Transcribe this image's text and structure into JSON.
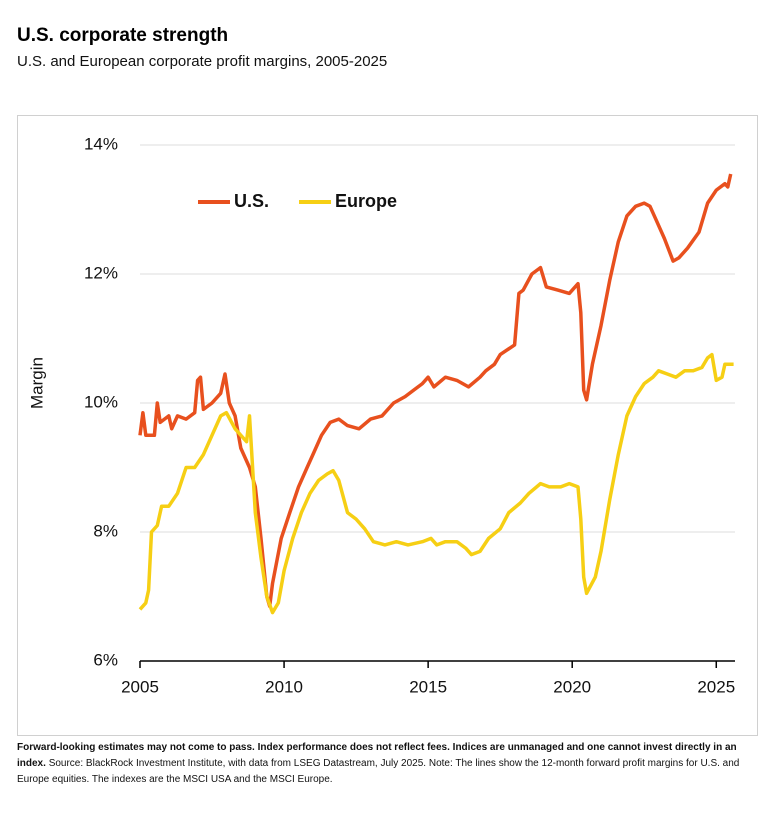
{
  "chart_data": {
    "type": "line",
    "title": "U.S. corporate strength",
    "subtitle": "U.S. and European corporate profit margins, 2005-2025",
    "ylabel": "Margin",
    "note_bold": "Forward-looking estimates may not come to pass. Index performance does not reflect fees. Indices are unmanaged and one cannot invest directly in an index.",
    "note": "Source: BlackRock Investment Institute, with data from LSEG Datastream, July 2025. Note: The lines show the 12-month forward profit margins for U.S. and Europe equities. The indexes are the MSCI USA and the MSCI Europe.",
    "xlim": [
      2005,
      2025.65
    ],
    "xticks": [
      2005,
      2010,
      2015,
      2020,
      2025
    ],
    "ylim": [
      6,
      14
    ],
    "yticks": [
      {
        "value": 6,
        "label": "6%"
      },
      {
        "value": 8,
        "label": "8%"
      },
      {
        "value": 10,
        "label": "10%"
      },
      {
        "value": 12,
        "label": "12%"
      },
      {
        "value": 14,
        "label": "14%"
      }
    ],
    "grid": true,
    "legend": "top-left",
    "series": [
      {
        "name": "U.S.",
        "color": "#e8501e",
        "x": [
          2005.0,
          2005.1,
          2005.2,
          2005.5,
          2005.6,
          2005.7,
          2006.0,
          2006.1,
          2006.3,
          2006.6,
          2006.9,
          2007.0,
          2007.1,
          2007.2,
          2007.5,
          2007.8,
          2007.95,
          2008.1,
          2008.3,
          2008.5,
          2008.8,
          2009.0,
          2009.2,
          2009.4,
          2009.5,
          2009.6,
          2009.9,
          2010.2,
          2010.5,
          2010.8,
          2011.0,
          2011.3,
          2011.6,
          2011.9,
          2012.2,
          2012.6,
          2013.0,
          2013.4,
          2013.8,
          2014.2,
          2014.5,
          2014.8,
          2015.0,
          2015.2,
          2015.6,
          2016.0,
          2016.4,
          2016.8,
          2017.0,
          2017.3,
          2017.5,
          2018.0,
          2018.15,
          2018.3,
          2018.6,
          2018.9,
          2019.1,
          2019.5,
          2019.9,
          2020.2,
          2020.3,
          2020.4,
          2020.5,
          2020.7,
          2021.0,
          2021.3,
          2021.6,
          2021.9,
          2022.2,
          2022.5,
          2022.7,
          2022.9,
          2023.2,
          2023.5,
          2023.7,
          2024.0,
          2024.4,
          2024.7,
          2025.0,
          2025.3,
          2025.4,
          2025.5
        ],
        "values": [
          9.5,
          9.85,
          9.5,
          9.5,
          10.0,
          9.7,
          9.8,
          9.6,
          9.8,
          9.75,
          9.85,
          10.35,
          10.4,
          9.9,
          10.0,
          10.15,
          10.45,
          10.0,
          9.8,
          9.3,
          9.0,
          8.7,
          7.9,
          7.0,
          6.85,
          7.2,
          7.9,
          8.3,
          8.7,
          9.0,
          9.2,
          9.5,
          9.7,
          9.75,
          9.65,
          9.6,
          9.75,
          9.8,
          10.0,
          10.1,
          10.2,
          10.3,
          10.4,
          10.25,
          10.4,
          10.35,
          10.25,
          10.4,
          10.5,
          10.6,
          10.75,
          10.9,
          11.7,
          11.75,
          12.0,
          12.1,
          11.8,
          11.75,
          11.7,
          11.85,
          11.4,
          10.2,
          10.05,
          10.6,
          11.2,
          11.9,
          12.5,
          12.9,
          13.05,
          13.1,
          13.05,
          12.85,
          12.55,
          12.2,
          12.25,
          12.4,
          12.65,
          13.1,
          13.3,
          13.4,
          13.35,
          13.55
        ]
      },
      {
        "name": "Europe",
        "color": "#f6cf14",
        "x": [
          2005.0,
          2005.2,
          2005.3,
          2005.4,
          2005.6,
          2005.75,
          2006.0,
          2006.3,
          2006.6,
          2006.9,
          2007.2,
          2007.5,
          2007.8,
          2008.0,
          2008.3,
          2008.6,
          2008.7,
          2008.8,
          2009.0,
          2009.2,
          2009.4,
          2009.6,
          2009.8,
          2010.0,
          2010.3,
          2010.6,
          2010.9,
          2011.2,
          2011.5,
          2011.7,
          2011.9,
          2012.2,
          2012.5,
          2012.8,
          2013.1,
          2013.5,
          2013.9,
          2014.3,
          2014.8,
          2015.1,
          2015.3,
          2015.6,
          2016.0,
          2016.3,
          2016.5,
          2016.8,
          2017.1,
          2017.5,
          2017.8,
          2018.2,
          2018.5,
          2018.9,
          2019.2,
          2019.6,
          2019.9,
          2020.2,
          2020.3,
          2020.4,
          2020.5,
          2020.8,
          2021.0,
          2021.3,
          2021.6,
          2021.9,
          2022.2,
          2022.5,
          2022.8,
          2023.0,
          2023.3,
          2023.6,
          2023.9,
          2024.2,
          2024.5,
          2024.7,
          2024.85,
          2025.0,
          2025.2,
          2025.3,
          2025.6
        ],
        "values": [
          6.8,
          6.9,
          7.1,
          8.0,
          8.1,
          8.4,
          8.4,
          8.6,
          9.0,
          9.0,
          9.2,
          9.5,
          9.8,
          9.85,
          9.6,
          9.45,
          9.4,
          9.8,
          8.3,
          7.6,
          7.0,
          6.75,
          6.9,
          7.4,
          7.9,
          8.3,
          8.6,
          8.8,
          8.9,
          8.95,
          8.8,
          8.3,
          8.2,
          8.05,
          7.85,
          7.8,
          7.85,
          7.8,
          7.85,
          7.9,
          7.8,
          7.85,
          7.85,
          7.75,
          7.65,
          7.7,
          7.9,
          8.05,
          8.3,
          8.45,
          8.6,
          8.75,
          8.7,
          8.7,
          8.75,
          8.7,
          8.2,
          7.3,
          7.05,
          7.3,
          7.7,
          8.5,
          9.2,
          9.8,
          10.1,
          10.3,
          10.4,
          10.5,
          10.45,
          10.4,
          10.5,
          10.5,
          10.55,
          10.7,
          10.75,
          10.35,
          10.4,
          10.6,
          10.6
        ]
      }
    ]
  }
}
